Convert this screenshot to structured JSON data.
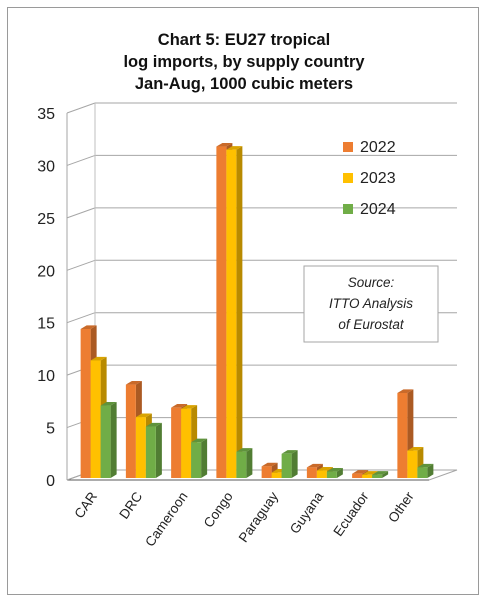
{
  "chart_data": {
    "type": "bar",
    "title_lines": [
      "Chart 5: EU27 tropical",
      "log imports, by supply country",
      "Jan-Aug, 1000 cubic meters"
    ],
    "categories": [
      "CAR",
      "DRC",
      "Cameroon",
      "Congo",
      "Paraguay",
      "Guyana",
      "Ecuador",
      "Other"
    ],
    "series": [
      {
        "name": "2022",
        "color": "#ED7D31",
        "values": [
          14.4,
          9.1,
          6.9,
          31.8,
          1.3,
          1.2,
          0.6,
          8.3
        ]
      },
      {
        "name": "2023",
        "color": "#FFC000",
        "values": [
          11.4,
          6.0,
          6.8,
          31.5,
          0.7,
          0.9,
          0.5,
          2.8
        ]
      },
      {
        "name": "2024",
        "color": "#70AD47",
        "values": [
          7.1,
          5.1,
          3.6,
          2.7,
          2.5,
          0.8,
          0.5,
          1.2
        ]
      }
    ],
    "yticks": [
      "0",
      "5",
      "10",
      "15",
      "20",
      "25",
      "30",
      "35"
    ],
    "ylim": [
      0,
      35
    ],
    "grid": true,
    "legend_position": "top-right",
    "annotation_lines": [
      "Source:",
      "ITTO  Analysis",
      "of Eurostat"
    ]
  }
}
